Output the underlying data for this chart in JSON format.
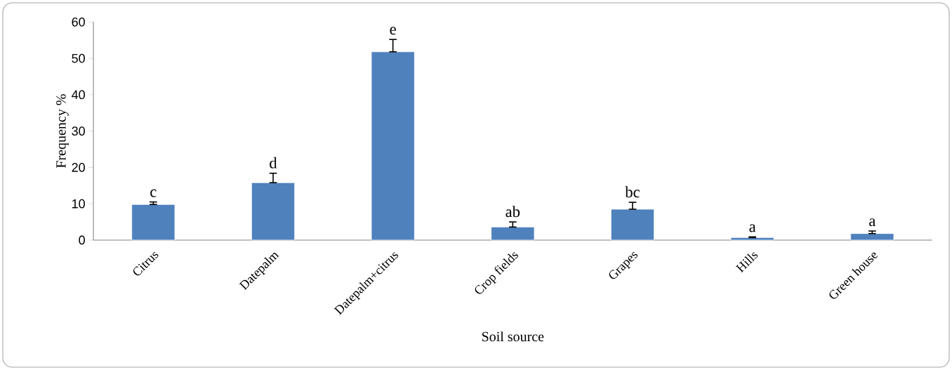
{
  "chart_data": {
    "type": "bar",
    "xlabel": "Soil source",
    "ylabel": "Frequency %",
    "categories": [
      "Citrus",
      "Datepalm",
      "Datepalm+citrus",
      "Crop fields",
      "Grapes",
      "Hills",
      "Green house"
    ],
    "values": [
      9.8,
      15.8,
      51.8,
      3.6,
      8.5,
      0.7,
      1.8
    ],
    "errors": [
      [
        9.8,
        10.5
      ],
      [
        15.8,
        18.4
      ],
      [
        51.8,
        55.2
      ],
      [
        3.6,
        5.0
      ],
      [
        8.5,
        10.4
      ],
      [
        0.7,
        0.9
      ],
      [
        1.8,
        2.5
      ]
    ],
    "color": "#4f81bd",
    "ylim": [
      0,
      60
    ],
    "yticks": [
      0,
      10,
      20,
      30,
      40,
      50,
      60
    ],
    "annotations": [
      {
        "text": "c",
        "x": "Citrus",
        "y": 10.5
      },
      {
        "text": "d",
        "x": "Datepalm",
        "y": 18.4
      },
      {
        "text": "e",
        "x": "Datepalm+citrus",
        "y": 55.2
      },
      {
        "text": "ab",
        "x": "Crop fields",
        "y": 5.0
      },
      {
        "text": "bc",
        "x": "Grapes",
        "y": 10.4
      },
      {
        "text": "a",
        "x": "Hills",
        "y": 0.9
      },
      {
        "text": "a",
        "x": "Green house",
        "y": 2.5
      }
    ]
  }
}
